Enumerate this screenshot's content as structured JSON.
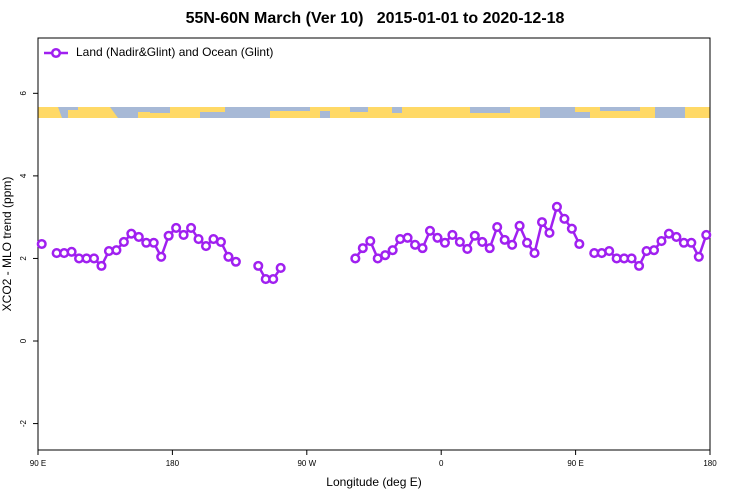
{
  "chart_data": {
    "type": "line",
    "title": "55N-60N March (Ver 10)   2015-01-01 to 2020-12-18",
    "xlabel": "Longitude (deg E)",
    "ylabel": "XCO2 - MLO trend (ppm)",
    "xlim": [
      90,
      540
    ],
    "xticks": [
      {
        "value": 90,
        "label": "90 E"
      },
      {
        "value": 180,
        "label": "180"
      },
      {
        "value": 270,
        "label": "90 W"
      },
      {
        "value": 360,
        "label": "0"
      },
      {
        "value": 450,
        "label": "90 E"
      },
      {
        "value": 540,
        "label": "180"
      }
    ],
    "ylim": [
      -2.64,
      7.34
    ],
    "yticks": [
      -2,
      0,
      2,
      4,
      6
    ],
    "legend": "top-left",
    "x": [
      92.5,
      97.5,
      102.5,
      107.5,
      112.5,
      117.5,
      122.5,
      127.5,
      132.5,
      137.5,
      142.5,
      147.5,
      152.5,
      157.5,
      162.5,
      167.5,
      172.5,
      177.5,
      182.5,
      187.5,
      192.5,
      197.5,
      202.5,
      207.5,
      212.5,
      217.5,
      222.5,
      227.5,
      232.5,
      237.5,
      242.5,
      247.5,
      252.5,
      257.5,
      262.5,
      267.5,
      272.5,
      277.5,
      282.5,
      287.5,
      292.5,
      297.5,
      302.5,
      307.5,
      312.5,
      317.5,
      322.5,
      327.5,
      332.5,
      337.5,
      342.5,
      347.5,
      352.5,
      357.5,
      362.5,
      367.5,
      372.5,
      377.5,
      382.5,
      387.5,
      392.5,
      397.5,
      402.5,
      407.5,
      412.5,
      417.5,
      422.5,
      427.5,
      432.5,
      437.5,
      442.5,
      447.5,
      452.5,
      457.5,
      462.5,
      467.5,
      472.5,
      477.5,
      482.5,
      487.5,
      492.5,
      497.5,
      502.5,
      507.5,
      512.5,
      517.5,
      522.5,
      527.5,
      532.5,
      537.5
    ],
    "series": [
      {
        "name": "Land (Nadir&Glint) and Ocean (Glint)",
        "color": "#a020f0",
        "values": [
          2.35,
          null,
          2.13,
          2.13,
          2.16,
          2.0,
          2.0,
          2.0,
          1.82,
          2.18,
          2.2,
          2.4,
          2.6,
          2.52,
          2.38,
          2.38,
          2.04,
          2.55,
          2.74,
          2.57,
          2.74,
          2.47,
          2.3,
          2.47,
          2.4,
          2.04,
          1.92,
          null,
          null,
          1.82,
          1.5,
          1.5,
          1.77,
          null,
          null,
          null,
          null,
          null,
          null,
          null,
          null,
          null,
          2.0,
          2.25,
          2.42,
          2.0,
          2.08,
          2.2,
          2.47,
          2.5,
          2.33,
          2.25,
          2.67,
          2.5,
          2.38,
          2.57,
          2.4,
          2.23,
          2.55,
          2.4,
          2.25,
          2.76,
          2.45,
          2.33,
          2.79,
          2.38,
          2.13,
          2.88,
          2.62,
          3.25,
          2.96,
          2.72,
          2.35,
          null,
          2.13,
          2.13,
          2.18,
          2.0,
          2.0,
          2.0,
          1.82,
          2.18,
          2.2,
          2.42,
          2.6,
          2.52,
          2.38,
          2.38,
          2.04,
          2.57
        ]
      }
    ]
  }
}
